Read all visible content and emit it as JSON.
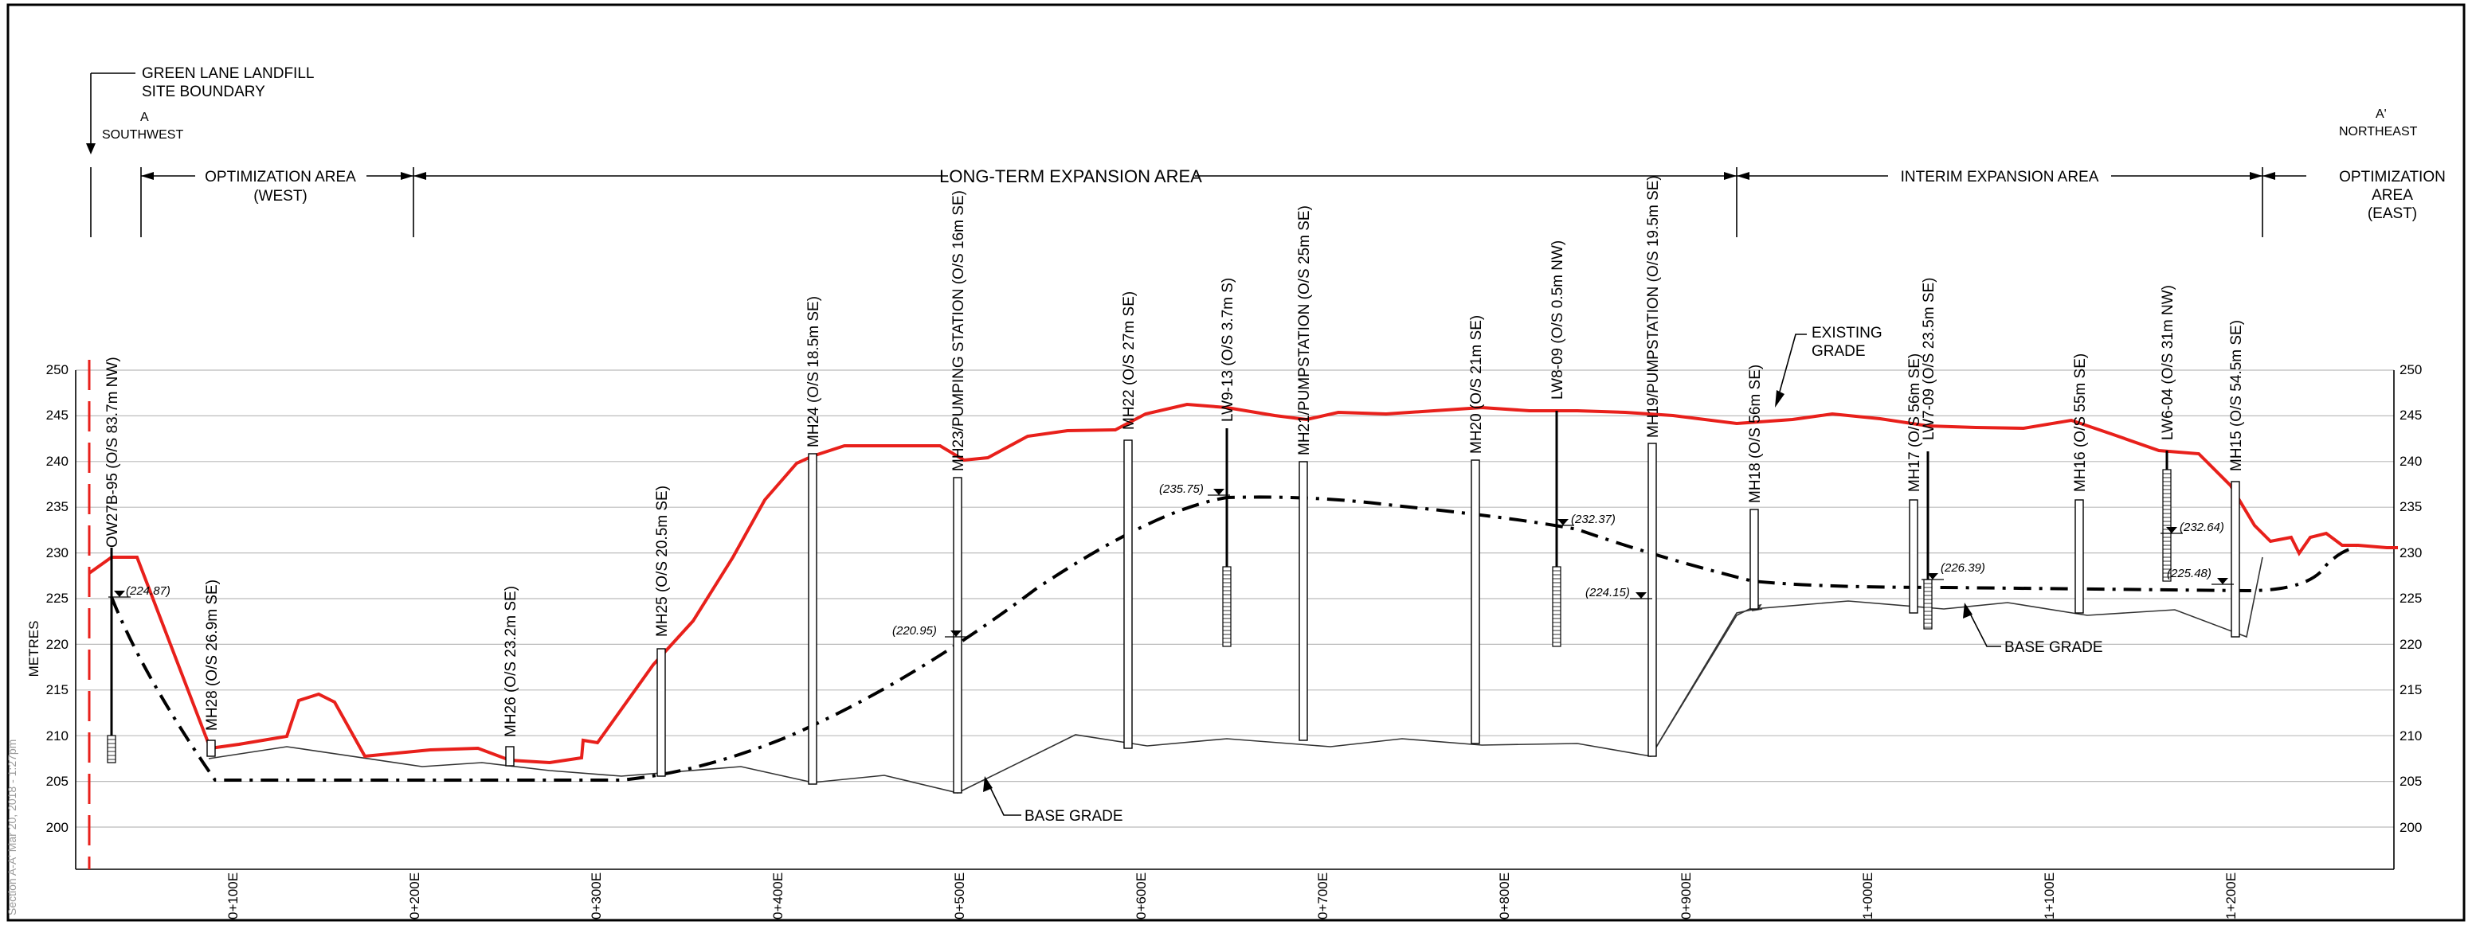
{
  "boundary": {
    "line1": "GREEN LANE LANDFILL",
    "line2": "SITE BOUNDARY"
  },
  "ends": {
    "left": {
      "letter": "A",
      "direction": "SOUTHWEST"
    },
    "right": {
      "letter": "A'",
      "direction": "NORTHEAST"
    }
  },
  "areas": [
    {
      "lines": [
        "OPTIMIZATION AREA",
        "(WEST)"
      ]
    },
    {
      "lines": [
        "LONG-TERM EXPANSION AREA"
      ]
    },
    {
      "lines": [
        "INTERIM EXPANSION AREA"
      ]
    },
    {
      "lines": [
        "OPTIMIZATION",
        "AREA",
        "(EAST)"
      ]
    }
  ],
  "labels": {
    "existing_grade": [
      "EXISTING",
      "GRADE"
    ],
    "base_grade": "BASE GRADE",
    "side_note": "Section A-A' Mar 20, 2018 - 1:27pm"
  },
  "axes": {
    "y_label": "METRES",
    "y_ticks": [
      "200",
      "205",
      "210",
      "215",
      "220",
      "225",
      "230",
      "235",
      "240",
      "245",
      "250"
    ],
    "x_ticks": [
      "0+100E",
      "0+200E",
      "0+300E",
      "0+400E",
      "0+500E",
      "0+600E",
      "0+700E",
      "0+800E",
      "0+900E",
      "1+000E",
      "1+100E",
      "1+200E"
    ]
  },
  "wells": [
    {
      "label": "OW27B-95 (O/S 83.7m NW)"
    },
    {
      "label": "MH28 (O/S 26.9m SE)"
    },
    {
      "label": "MH26 (O/S 23.2m SE)"
    },
    {
      "label": "MH25 (O/S 20.5m SE)"
    },
    {
      "label": "MH24 (O/S 18.5m SE)"
    },
    {
      "label": "MH23/PUMPING STATION (O/S 16m SE)"
    },
    {
      "label": "MH22 (O/S 27m SE)"
    },
    {
      "label": "LW9-13 (O/S 3.7m S)"
    },
    {
      "label": "MH21/PUMPSTATION (O/S 25m SE)"
    },
    {
      "label": "MH20 (O/S 21m SE)"
    },
    {
      "label": "LW8-09 (O/S 0.5m NW)"
    },
    {
      "label": "MH19/PUMPSTATION (O/S 19.5m SE)"
    },
    {
      "label": "MH18 (O/S 56m SE)"
    },
    {
      "label": "MH17 (O/S 56m SE)"
    },
    {
      "label": "LW7-09 (O/S 23.5m SE)"
    },
    {
      "label": "MH16 (O/S 55m SE)"
    },
    {
      "label": "LW6-04 (O/S 31m NW)"
    },
    {
      "label": "MH15 (O/S 54.5m SE)"
    }
  ],
  "water_levels": [
    "(224.87)",
    "(220.95)",
    "(235.75)",
    "(232.37)",
    "(224.15)",
    "(226.39)",
    "(225.48)",
    "(232.64)"
  ],
  "colors": {
    "existing_grade": "#e8201b",
    "base_grade": "#333333",
    "grid": "#bbbbbb",
    "frame": "#000000"
  }
}
